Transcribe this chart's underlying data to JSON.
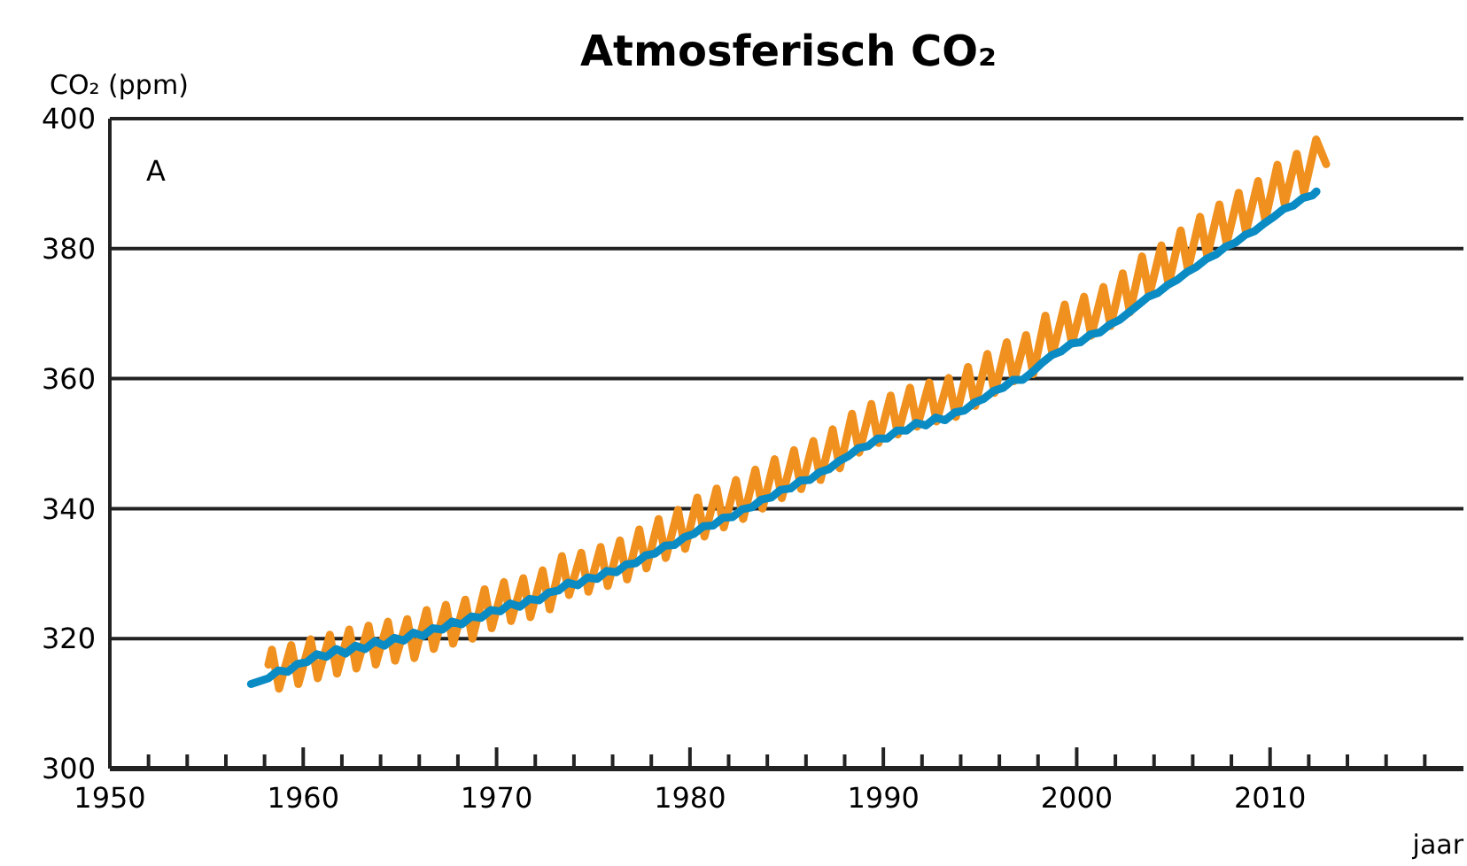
{
  "chart_data": {
    "type": "line",
    "title": "Atmosferisch CO₂",
    "ylabel": "CO₂ (ppm)",
    "xlabel": "jaar",
    "annotations": [
      "A"
    ],
    "xlim": [
      1950,
      2020
    ],
    "ylim": [
      300,
      400
    ],
    "xticks": [
      1950,
      {
        "value": 1952,
        "label": null
      },
      {
        "value": 1954,
        "label": null
      },
      {
        "value": 1956,
        "label": null
      },
      {
        "value": 1958,
        "label": null
      },
      1960,
      {
        "value": 1962,
        "label": null
      },
      {
        "value": 1964,
        "label": null
      },
      {
        "value": 1966,
        "label": null
      },
      {
        "value": 1968,
        "label": null
      },
      1970,
      {
        "value": 1972,
        "label": null
      },
      {
        "value": 1974,
        "label": null
      },
      {
        "value": 1976,
        "label": null
      },
      {
        "value": 1978,
        "label": null
      },
      1980,
      {
        "value": 1982,
        "label": null
      },
      {
        "value": 1984,
        "label": null
      },
      {
        "value": 1986,
        "label": null
      },
      {
        "value": 1988,
        "label": null
      },
      1990,
      {
        "value": 1992,
        "label": null
      },
      {
        "value": 1994,
        "label": null
      },
      {
        "value": 1996,
        "label": null
      },
      {
        "value": 1998,
        "label": null
      },
      2000,
      {
        "value": 2002,
        "label": null
      },
      {
        "value": 2004,
        "label": null
      },
      {
        "value": 2006,
        "label": null
      },
      {
        "value": 2008,
        "label": null
      },
      2010,
      {
        "value": 2012,
        "label": null
      },
      {
        "value": 2014,
        "label": null
      },
      {
        "value": 2016,
        "label": null
      },
      {
        "value": 2018,
        "label": null
      }
    ],
    "yticks": [
      300,
      320,
      340,
      360,
      380,
      400
    ],
    "grid": "y",
    "line_style": "solid",
    "marker": "none",
    "series": [
      {
        "color": "#f0901e",
        "x": [
          1958.2,
          1958.38,
          1958.75,
          1959.38,
          1959.75,
          1960.38,
          1960.75,
          1961.38,
          1961.75,
          1962.38,
          1962.75,
          1963.38,
          1963.75,
          1964.38,
          1964.75,
          1965.38,
          1965.75,
          1966.38,
          1966.75,
          1967.38,
          1967.75,
          1968.38,
          1968.75,
          1969.38,
          1969.75,
          1970.38,
          1970.75,
          1971.38,
          1971.75,
          1972.38,
          1972.75,
          1973.38,
          1973.75,
          1974.38,
          1974.75,
          1975.38,
          1975.75,
          1976.38,
          1976.75,
          1977.38,
          1977.75,
          1978.38,
          1978.75,
          1979.38,
          1979.75,
          1980.38,
          1980.75,
          1981.38,
          1981.75,
          1982.38,
          1982.75,
          1983.38,
          1983.75,
          1984.38,
          1984.75,
          1985.38,
          1985.75,
          1986.38,
          1986.75,
          1987.38,
          1987.75,
          1988.38,
          1988.75,
          1989.38,
          1989.75,
          1990.38,
          1990.75,
          1991.38,
          1991.75,
          1992.38,
          1992.75,
          1993.38,
          1993.75,
          1994.38,
          1994.75,
          1995.38,
          1995.75,
          1996.38,
          1996.75,
          1997.38,
          1997.75,
          1998.38,
          1998.75,
          1999.38,
          1999.75,
          2000.38,
          2000.75,
          2001.38,
          2001.75,
          2002.38,
          2002.75,
          2003.38,
          2003.75,
          2004.38,
          2004.75,
          2005.38,
          2005.75,
          2006.38,
          2006.75,
          2007.38,
          2007.75,
          2008.38,
          2008.75,
          2009.38,
          2009.75,
          2010.38,
          2010.75,
          2011.38,
          2011.75,
          2012.38,
          2012.9
        ],
        "values": [
          316,
          318.3,
          312.3,
          319,
          313,
          319.9,
          313.9,
          320.6,
          314.6,
          321.4,
          315.4,
          322,
          316,
          322.6,
          316.6,
          323,
          317,
          324.4,
          318.4,
          325.2,
          319.2,
          326,
          320,
          327.6,
          321.6,
          328.7,
          322.7,
          329.3,
          323.3,
          330.5,
          324.5,
          332.7,
          326.7,
          333.2,
          327.2,
          334.1,
          328.1,
          335.1,
          329.1,
          336.8,
          330.8,
          338.4,
          332.4,
          339.8,
          333.8,
          341.7,
          335.7,
          343.1,
          337.1,
          344.4,
          338.4,
          346,
          340,
          347.6,
          341.6,
          349,
          343,
          350.4,
          344.4,
          352.2,
          346.2,
          354.6,
          348.6,
          356.1,
          350.1,
          357.4,
          351.4,
          358.6,
          352.6,
          359.4,
          353.4,
          360.1,
          354.1,
          361.8,
          355.8,
          363.8,
          357.8,
          365.6,
          359.6,
          366.7,
          360.7,
          369.7,
          363.7,
          371.4,
          365.4,
          372.6,
          366.6,
          374.1,
          368.1,
          376.2,
          370.2,
          378.8,
          372.8,
          380.5,
          374.5,
          382.8,
          376.8,
          384.9,
          378.9,
          386.8,
          380.8,
          388.6,
          382.6,
          390.4,
          384.4,
          392.9,
          386.9,
          394.6,
          388.6,
          396.8,
          393
        ]
      },
      {
        "color": "#0a8bc4",
        "x": [
          1957.3,
          1958.2,
          1958.7,
          1959.2,
          1959.7,
          1960.2,
          1960.7,
          1961.2,
          1961.7,
          1962.2,
          1962.7,
          1963.2,
          1963.7,
          1964.2,
          1964.7,
          1965.2,
          1965.7,
          1966.2,
          1966.7,
          1967.2,
          1967.7,
          1968.2,
          1968.7,
          1969.2,
          1969.7,
          1970.2,
          1970.7,
          1971.2,
          1971.7,
          1972.2,
          1972.7,
          1973.2,
          1973.7,
          1974.2,
          1974.7,
          1975.2,
          1975.7,
          1976.2,
          1976.7,
          1977.2,
          1977.7,
          1978.2,
          1978.7,
          1979.2,
          1979.7,
          1980.2,
          1980.7,
          1981.2,
          1981.7,
          1982.2,
          1982.7,
          1983.2,
          1983.7,
          1984.2,
          1984.7,
          1985.2,
          1985.7,
          1986.2,
          1986.7,
          1987.2,
          1987.7,
          1988.2,
          1988.7,
          1989.2,
          1989.7,
          1990.2,
          1990.7,
          1991.2,
          1991.7,
          1992.2,
          1992.7,
          1993.2,
          1993.7,
          1994.2,
          1994.7,
          1995.2,
          1995.7,
          1996.2,
          1996.7,
          1997.2,
          1997.7,
          1998.2,
          1998.7,
          1999.2,
          1999.7,
          2000.2,
          2000.7,
          2001.2,
          2001.7,
          2002.2,
          2002.7,
          2003.2,
          2003.7,
          2004.2,
          2004.7,
          2005.2,
          2005.7,
          2006.2,
          2006.7,
          2007.2,
          2007.7,
          2008.2,
          2008.7,
          2009.2,
          2009.7,
          2010.2,
          2010.7,
          2011.2,
          2011.7,
          2012.2,
          2012.4
        ],
        "values": [
          313,
          313.9,
          315.1,
          314.9,
          316.1,
          316.4,
          317.6,
          317.2,
          318.4,
          317.7,
          318.9,
          318.4,
          319.6,
          318.9,
          320.1,
          319.7,
          320.9,
          320.4,
          321.6,
          321.4,
          322.6,
          322.2,
          323.4,
          323.2,
          324.4,
          324.2,
          325.4,
          324.9,
          326.1,
          325.9,
          327.1,
          327.4,
          328.6,
          328.2,
          329.4,
          329.2,
          330.4,
          330.2,
          331.4,
          331.6,
          332.8,
          333.1,
          334.3,
          334.4,
          335.6,
          336.1,
          337.3,
          337.4,
          338.6,
          338.7,
          339.9,
          340.2,
          341.4,
          341.7,
          342.9,
          343.1,
          344.3,
          344.4,
          345.6,
          346.1,
          347.3,
          348.1,
          349.3,
          349.6,
          350.8,
          350.8,
          352,
          352,
          353.2,
          352.8,
          354,
          353.6,
          354.8,
          355.1,
          356.3,
          356.9,
          358.1,
          358.6,
          359.8,
          359.8,
          361,
          362.4,
          363.6,
          364.2,
          365.4,
          365.6,
          366.8,
          367.1,
          368.3,
          369,
          370.2,
          371.4,
          372.6,
          373.2,
          374.4,
          375.2,
          376.4,
          377.2,
          378.4,
          379.1,
          380.3,
          380.9,
          382.1,
          382.7,
          383.9,
          384.9,
          386.1,
          386.6,
          387.8,
          388.2,
          388.8
        ]
      }
    ]
  }
}
